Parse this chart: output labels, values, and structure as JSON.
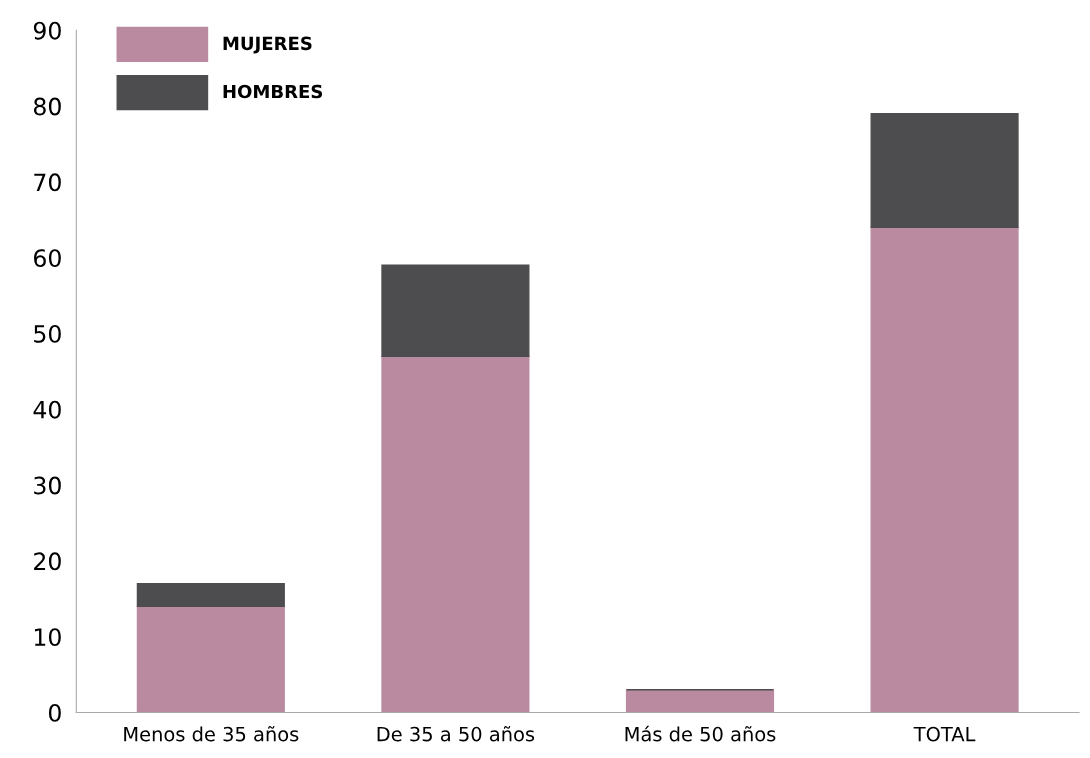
{
  "chart_data": {
    "type": "bar",
    "stacked": true,
    "categories": [
      "Menos de 35 años",
      "De 35 a 50 años",
      "Más de 50 años",
      "TOTAL"
    ],
    "series": [
      {
        "name": "MUJERES",
        "color": "#b98aa0",
        "values": [
          14,
          47,
          3,
          64
        ]
      },
      {
        "name": "HOMBRES",
        "color": "#4d4d4f",
        "values": [
          3,
          12,
          0,
          15
        ]
      }
    ],
    "ylim": [
      0,
      90
    ],
    "yticks": [
      0,
      10,
      20,
      30,
      40,
      50,
      60,
      70,
      80,
      90
    ],
    "grid": false,
    "legend": "top left"
  }
}
